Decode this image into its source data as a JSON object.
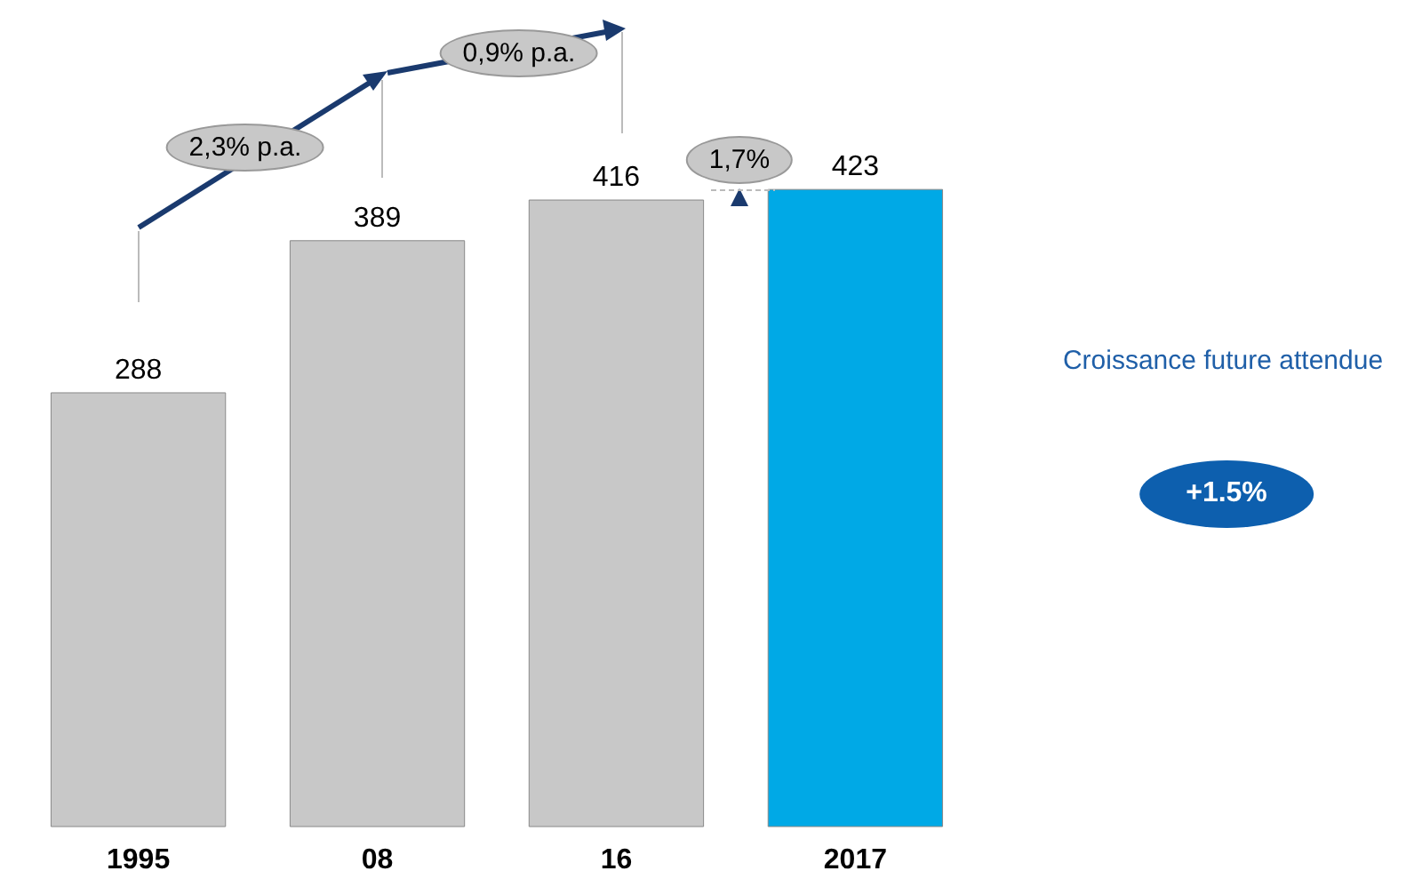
{
  "chart_data": {
    "type": "bar",
    "categories": [
      "1995",
      "08",
      "16",
      "2017"
    ],
    "values": [
      288,
      389,
      416,
      423
    ],
    "colors": [
      "#c8c8c8",
      "#c8c8c8",
      "#c8c8c8",
      "#00a9e6"
    ],
    "data_labels": true,
    "annotations": [
      "2,3% p.a.",
      "0,9% p.a.",
      "1,7%",
      "Croissance future attendue",
      "+1.5%"
    ]
  }
}
